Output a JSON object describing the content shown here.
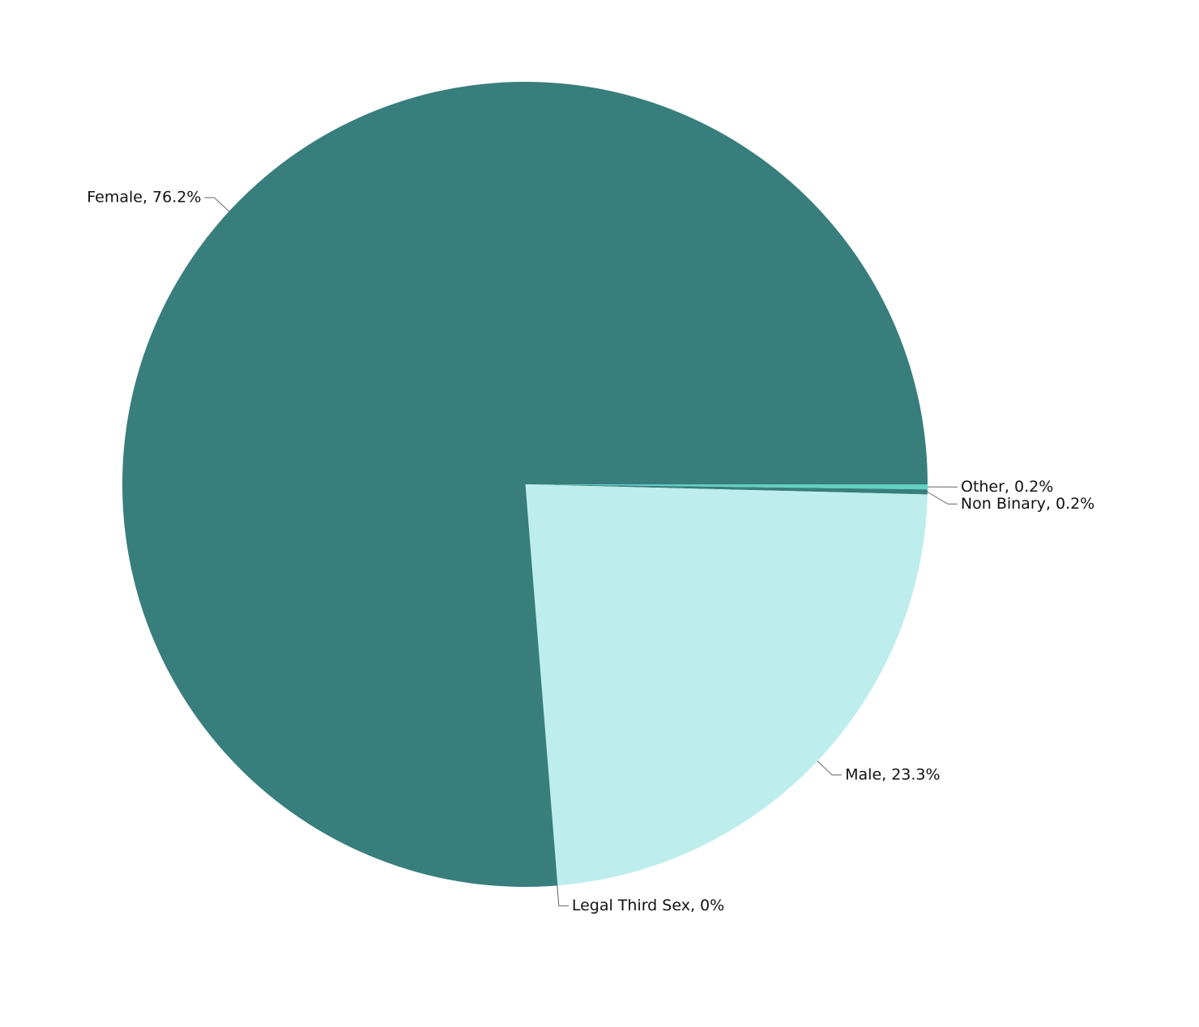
{
  "chart_data": {
    "type": "pie",
    "values": [
      0.2,
      0.2,
      23.3,
      0,
      76.2
    ],
    "value_labels": [
      "Other, 0.2%",
      "Non Binary, 0.2%",
      "Male, 23.3%",
      "Legal Third Sex, 0%",
      "Female, 76.2%"
    ],
    "colors": [
      "#62cfc7",
      "#377e7c",
      "#bdeded",
      "#377e7c",
      "#387e7c"
    ]
  }
}
